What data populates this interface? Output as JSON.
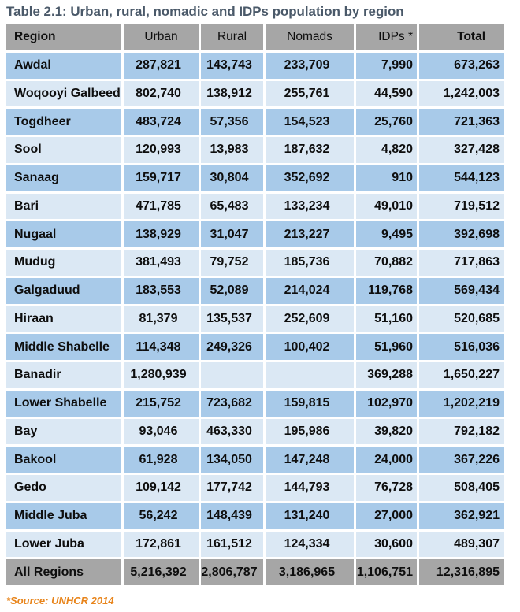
{
  "title": "Table 2.1: Urban, rural, nomadic and IDPs population by region",
  "table": {
    "columns": [
      "Region",
      "Urban",
      "Rural",
      "Nomads",
      "IDPs *",
      "Total"
    ],
    "rows": [
      [
        "Awdal",
        "287,821",
        "143,743",
        "233,709",
        "7,990",
        "673,263"
      ],
      [
        "Woqooyi Galbeed",
        "802,740",
        "138,912",
        "255,761",
        "44,590",
        "1,242,003"
      ],
      [
        "Togdheer",
        "483,724",
        "57,356",
        "154,523",
        "25,760",
        "721,363"
      ],
      [
        "Sool",
        "120,993",
        "13,983",
        "187,632",
        "4,820",
        "327,428"
      ],
      [
        "Sanaag",
        "159,717",
        "30,804",
        "352,692",
        "910",
        "544,123"
      ],
      [
        "Bari",
        "471,785",
        "65,483",
        "133,234",
        "49,010",
        "719,512"
      ],
      [
        "Nugaal",
        "138,929",
        "31,047",
        "213,227",
        "9,495",
        "392,698"
      ],
      [
        "Mudug",
        "381,493",
        "79,752",
        "185,736",
        "70,882",
        "717,863"
      ],
      [
        "Galgaduud",
        "183,553",
        "52,089",
        "214,024",
        "119,768",
        "569,434"
      ],
      [
        "Hiraan",
        "81,379",
        "135,537",
        "252,609",
        "51,160",
        "520,685"
      ],
      [
        "Middle Shabelle",
        "114,348",
        "249,326",
        "100,402",
        "51,960",
        "516,036"
      ],
      [
        "Banadir",
        "1,280,939",
        "",
        "",
        "369,288",
        "1,650,227"
      ],
      [
        "Lower Shabelle",
        "215,752",
        "723,682",
        "159,815",
        "102,970",
        "1,202,219"
      ],
      [
        "Bay",
        "93,046",
        "463,330",
        "195,986",
        "39,820",
        "792,182"
      ],
      [
        "Bakool",
        "61,928",
        "134,050",
        "147,248",
        "24,000",
        "367,226"
      ],
      [
        "Gedo",
        "109,142",
        "177,742",
        "144,793",
        "76,728",
        "508,405"
      ],
      [
        "Middle Juba",
        "56,242",
        "148,439",
        "131,240",
        "27,000",
        "362,921"
      ],
      [
        "Lower Juba",
        "172,861",
        "161,512",
        "124,334",
        "30,600",
        "489,307"
      ]
    ],
    "total_row": [
      "All Regions",
      "5,216,392",
      "2,806,787",
      "3,186,965",
      "1,106,751",
      "12,316,895"
    ]
  },
  "footnote": "*Source: UNHCR 2014",
  "colors": {
    "header_bg": "#A6A6A6",
    "row_dark": "#A8CAE9",
    "row_light": "#DBE8F4",
    "title_color": "#4A5969",
    "footnote_color": "#E8851C"
  }
}
